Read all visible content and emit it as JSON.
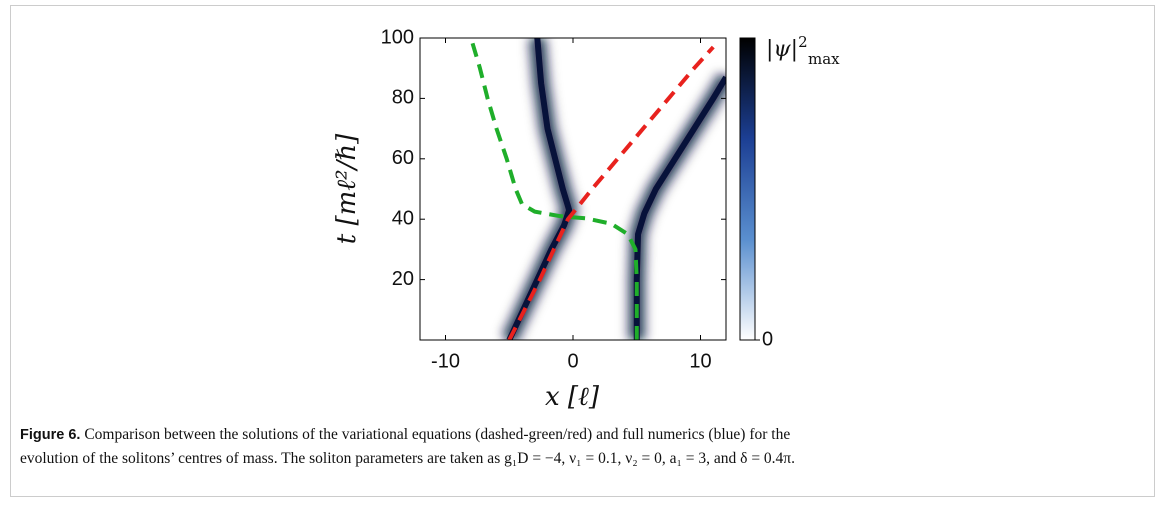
{
  "chart_data": {
    "type": "line",
    "xlabel": "x [ℓ]",
    "ylabel": "t [mℓ²/ℏ]",
    "xlim": [
      -12,
      12
    ],
    "ylim": [
      0,
      100
    ],
    "xticks": [
      -10,
      0,
      10
    ],
    "yticks": [
      20,
      40,
      60,
      80,
      100
    ],
    "series": [
      {
        "color": "#07123a",
        "style": "band",
        "x": [
          -5,
          -3.9,
          -2.8,
          -1.7,
          -0.7,
          -0.3,
          -0.8,
          -1.4,
          -2,
          -2.5,
          -2.8
        ],
        "values": [
          0,
          10,
          20,
          30,
          38,
          43,
          50,
          60,
          70,
          85,
          100
        ]
      },
      {
        "color": "#07123a",
        "style": "band",
        "x": [
          5,
          5,
          5.1,
          5.6,
          6.5,
          8,
          9.5,
          11,
          12
        ],
        "values": [
          0,
          20,
          35,
          42,
          50,
          60,
          70,
          80,
          87
        ]
      },
      {
        "color": "#1fae2a",
        "style": "dashed",
        "x": [
          5,
          5,
          4.9,
          4.3,
          3,
          1,
          -1,
          -3,
          -4,
          -4.5,
          -5.2,
          -6,
          -6.7,
          -7.3,
          -8
        ],
        "values": [
          0,
          20,
          30,
          35,
          38.5,
          40.3,
          41,
          42.5,
          45,
          50,
          60,
          70,
          80,
          90,
          100
        ]
      },
      {
        "color": "#e8221e",
        "style": "dashed",
        "x": [
          -5,
          -3.8,
          -2.6,
          -1.5,
          -0.4,
          1.5,
          3.5,
          5.5,
          7.5,
          9.5,
          11
        ],
        "values": [
          0,
          10,
          20,
          30,
          40,
          50,
          60,
          70,
          80,
          90,
          97
        ]
      }
    ],
    "colorbar": {
      "colors": [
        "#ffffff",
        "#5a8fcf",
        "#1c3f94",
        "#000000"
      ],
      "ticks": [
        0
      ],
      "max_label": "|ψ|",
      "max_sup": "2",
      "max_sub": "max"
    }
  },
  "caption": {
    "label": "Figure 6.",
    "lines": [
      "Comparison between the solutions of the variational equations (dashed-green/red) and full numerics (blue) for the",
      "evolution of the solitons’ centres of mass. The soliton parameters are taken as g₁D = −4, ν₁ = 0.1, ν₂ = 0, a₁ = 3, and δ = 0.4π."
    ]
  }
}
